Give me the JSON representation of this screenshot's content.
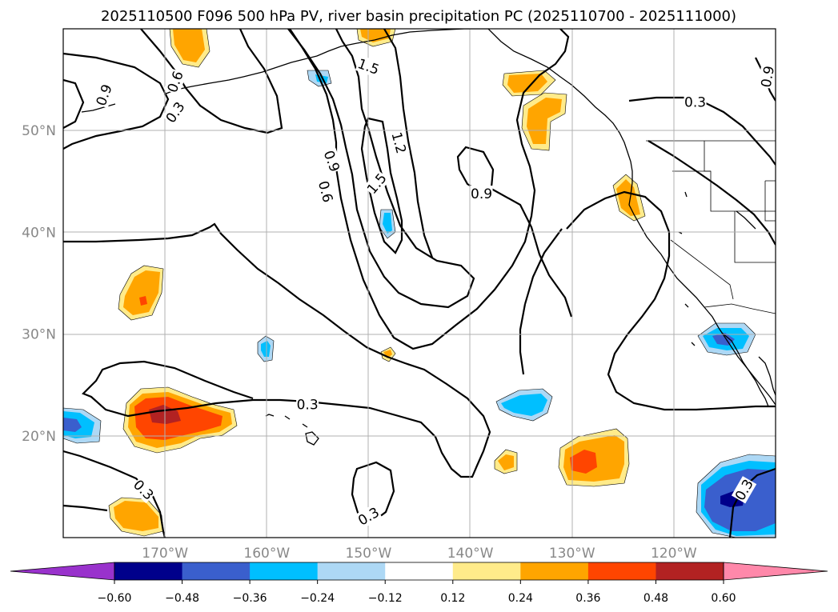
{
  "title": "2025110500 F096 500 hPa PV, river basin precipitation PC (2025110700 - 2025111000)",
  "map": {
    "lon_range": [
      -180,
      -110
    ],
    "lat_range": [
      10,
      60
    ],
    "lon_ticks": [
      {
        "value": -170,
        "label": "170°W"
      },
      {
        "value": -160,
        "label": "160°W"
      },
      {
        "value": -150,
        "label": "150°W"
      },
      {
        "value": -140,
        "label": "140°W"
      },
      {
        "value": -130,
        "label": "130°W"
      },
      {
        "value": -120,
        "label": "120°W"
      }
    ],
    "lat_ticks": [
      {
        "value": 20,
        "label": "20°N"
      },
      {
        "value": 30,
        "label": "30°N"
      },
      {
        "value": 40,
        "label": "40°N"
      },
      {
        "value": 50,
        "label": "50°N"
      }
    ],
    "grid": true
  },
  "pv_contour_labels": [
    {
      "text": "0.6",
      "lon": -169.0,
      "lat": 54.8,
      "rot": -70
    },
    {
      "text": "0.9",
      "lon": -176.0,
      "lat": 53.5,
      "rot": -70
    },
    {
      "text": "0.3",
      "lon": -169.0,
      "lat": 51.8,
      "rot": -55
    },
    {
      "text": "1.5",
      "lon": -150.0,
      "lat": 56.3,
      "rot": 20
    },
    {
      "text": "1.2",
      "lon": -147.0,
      "lat": 48.8,
      "rot": 75
    },
    {
      "text": "0.9",
      "lon": -153.6,
      "lat": 47.0,
      "rot": 70
    },
    {
      "text": "0.6",
      "lon": -154.2,
      "lat": 44.0,
      "rot": 75
    },
    {
      "text": "1.5",
      "lon": -149.2,
      "lat": 44.8,
      "rot": -50
    },
    {
      "text": "0.9",
      "lon": -138.9,
      "lat": 43.8,
      "rot": 0
    },
    {
      "text": "0.3",
      "lon": -117.9,
      "lat": 52.8,
      "rot": 0
    },
    {
      "text": "0.9",
      "lon": -110.8,
      "lat": 55.3,
      "rot": -80
    },
    {
      "text": "0.3",
      "lon": -156.0,
      "lat": 23.1,
      "rot": 0
    },
    {
      "text": "0.3",
      "lon": -172.1,
      "lat": 14.7,
      "rot": 45
    },
    {
      "text": "0.3",
      "lon": -150.0,
      "lat": 12.1,
      "rot": -30
    },
    {
      "text": "0.3",
      "lon": -113.1,
      "lat": 14.7,
      "rot": -60
    }
  ],
  "colorbar": {
    "colors": [
      "#9932cc",
      "#00008b",
      "#3a5fcd",
      "#00bfff",
      "#add8f5",
      "#ffffff",
      "#ffeb8a",
      "#ffa500",
      "#ff4500",
      "#b22222",
      "#ff88aa"
    ],
    "ticks": [
      "−0.60",
      "−0.48",
      "−0.36",
      "−0.24",
      "−0.12",
      "0.12",
      "0.24",
      "0.36",
      "0.48",
      "0.60"
    ],
    "levels": [
      -0.6,
      -0.48,
      -0.36,
      -0.24,
      -0.12,
      0.12,
      0.24,
      0.36,
      0.48,
      0.6
    ],
    "extend": "both"
  },
  "legend_colors": {
    "c_-1": "#9932cc",
    "c_-2": "#00008b",
    "c_-3": "#3a5fcd",
    "c_-4": "#00bfff",
    "c_-5": "#add8f5",
    "c_+1": "#ffeb8a",
    "c_+2": "#ffa500",
    "c_+3": "#ff4500",
    "c_+4": "#b22222"
  }
}
